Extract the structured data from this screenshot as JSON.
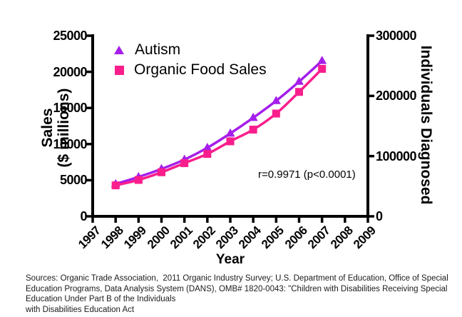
{
  "chart_data": {
    "type": "line",
    "x": [
      1998,
      1999,
      2000,
      2001,
      2002,
      2003,
      2004,
      2005,
      2006,
      2007
    ],
    "series": [
      {
        "name": "Autism",
        "axis": "right",
        "marker": "triangle",
        "color": "#a51eeb",
        "values": [
          53600,
          65400,
          78700,
          94200,
          113800,
          137700,
          163800,
          191800,
          223800,
          258300
        ]
      },
      {
        "name": "Organic Food Sales",
        "axis": "left",
        "marker": "square",
        "color": "#fa1e8c",
        "values": [
          4286,
          5039,
          6100,
          7360,
          8635,
          10381,
          12002,
          14223,
          17221,
          20410
        ]
      }
    ],
    "left_axis": {
      "title": "Sales ($ millions)",
      "title_lines": [
        "Sales",
        "($ millions)"
      ],
      "range": [
        0,
        25000
      ],
      "ticks": [
        0,
        5000,
        10000,
        15000,
        20000,
        25000
      ]
    },
    "right_axis": {
      "title": "Individuals Diagnosed",
      "range": [
        0,
        300000
      ],
      "ticks": [
        0,
        100000,
        200000,
        300000
      ]
    },
    "x_axis": {
      "title": "Year",
      "range": [
        1997,
        2009
      ],
      "ticks": [
        1997,
        1998,
        1999,
        2000,
        2001,
        2002,
        2003,
        2004,
        2005,
        2006,
        2007,
        2008,
        2009
      ]
    },
    "annotation": "r=0.9971 (p<0.0001)",
    "grid": false,
    "legend_position": "top-left-inside",
    "axis_color": "#000000"
  },
  "sources": {
    "lines": [
      "Sources: Organic Trade Association,  2011 Organic Industry Survey; U.S. Department of Education, Office of Special",
      "Education Programs, Data Analysis System (DANS), OMB# 1820-0043: \"Children with Disabilities Receiving Special",
      "Education Under Part B of the Individuals",
      "with Disabilities Education Act"
    ]
  }
}
